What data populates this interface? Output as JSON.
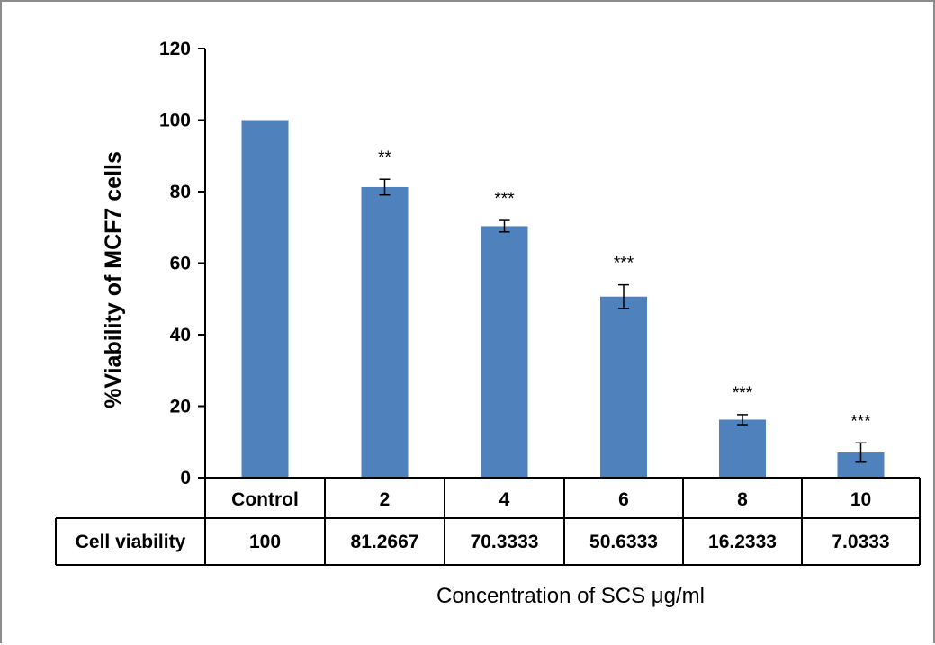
{
  "chart_data": {
    "type": "bar",
    "categories": [
      "Control",
      "2",
      "4",
      "6",
      "8",
      "10"
    ],
    "values": [
      100,
      81.2667,
      70.3333,
      50.6333,
      16.2333,
      7.0333
    ],
    "errors": [
      0.2,
      2.2,
      1.6,
      3.3,
      1.4,
      2.7
    ],
    "significance": [
      "",
      "**",
      "***",
      "***",
      "***",
      "***"
    ],
    "ylabel": "%Viability of MCF7 cells",
    "xlabel": "Concentration of SCS μg/ml",
    "ylim": [
      0,
      120
    ],
    "yticks": [
      0,
      20,
      40,
      60,
      80,
      100,
      120
    ],
    "grid": false,
    "bar_color": "#4f81bd",
    "table": {
      "row_label": "Cell viability",
      "values": [
        "100",
        "81.2667",
        "70.3333",
        "50.6333",
        "16.2333",
        "7.0333"
      ]
    }
  }
}
